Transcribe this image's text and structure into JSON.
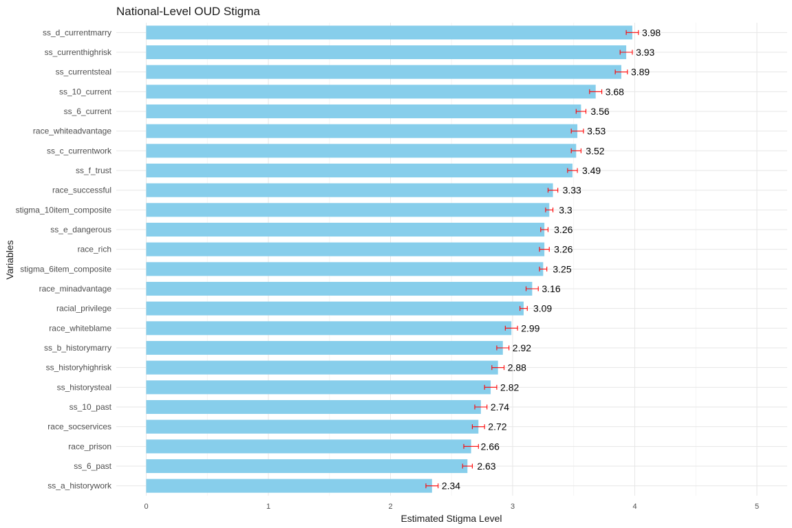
{
  "chart_data": {
    "type": "bar",
    "orientation": "horizontal",
    "title": "National-Level OUD Stigma",
    "xlabel": "Estimated Stigma Level",
    "ylabel": "Variables",
    "xlim": [
      0,
      5.25
    ],
    "x_ticks": [
      0,
      1,
      2,
      3,
      4,
      5
    ],
    "grid": true,
    "bar_color": "#87CEEB",
    "error_bar_color": "#FF0000",
    "categories": [
      "ss_d_currentmarry",
      "ss_currenthighrisk",
      "ss_currentsteal",
      "ss_10_current",
      "ss_6_current",
      "race_whiteadvantage",
      "ss_c_currentwork",
      "ss_f_trust",
      "race_successful",
      "stigma_10item_composite",
      "ss_e_dangerous",
      "race_rich",
      "stigma_6item_composite",
      "race_minadvantage",
      "racial_privilege",
      "race_whiteblame",
      "ss_b_historymarry",
      "ss_historyhighrisk",
      "ss_historysteal",
      "ss_10_past",
      "race_socservices",
      "race_prison",
      "ss_6_past",
      "ss_a_historywork"
    ],
    "values": [
      3.98,
      3.93,
      3.89,
      3.68,
      3.56,
      3.53,
      3.52,
      3.49,
      3.33,
      3.3,
      3.26,
      3.26,
      3.25,
      3.16,
      3.09,
      2.99,
      2.92,
      2.88,
      2.82,
      2.74,
      2.72,
      2.66,
      2.63,
      2.34
    ],
    "value_labels": [
      "3.98",
      "3.93",
      "3.89",
      "3.68",
      "3.56",
      "3.53",
      "3.52",
      "3.49",
      "3.33",
      "3.3",
      "3.26",
      "3.26",
      "3.25",
      "3.16",
      "3.09",
      "2.99",
      "2.92",
      "2.88",
      "2.82",
      "2.74",
      "2.72",
      "2.66",
      "2.63",
      "2.34"
    ],
    "error_low": [
      3.93,
      3.88,
      3.84,
      3.63,
      3.52,
      3.48,
      3.48,
      3.45,
      3.29,
      3.27,
      3.23,
      3.22,
      3.22,
      3.11,
      3.06,
      2.94,
      2.87,
      2.83,
      2.77,
      2.69,
      2.67,
      2.6,
      2.59,
      2.29
    ],
    "error_high": [
      4.03,
      3.98,
      3.94,
      3.73,
      3.6,
      3.58,
      3.56,
      3.53,
      3.37,
      3.33,
      3.29,
      3.3,
      3.28,
      3.21,
      3.12,
      3.04,
      2.97,
      2.93,
      2.87,
      2.79,
      2.77,
      2.72,
      2.67,
      2.39
    ]
  }
}
